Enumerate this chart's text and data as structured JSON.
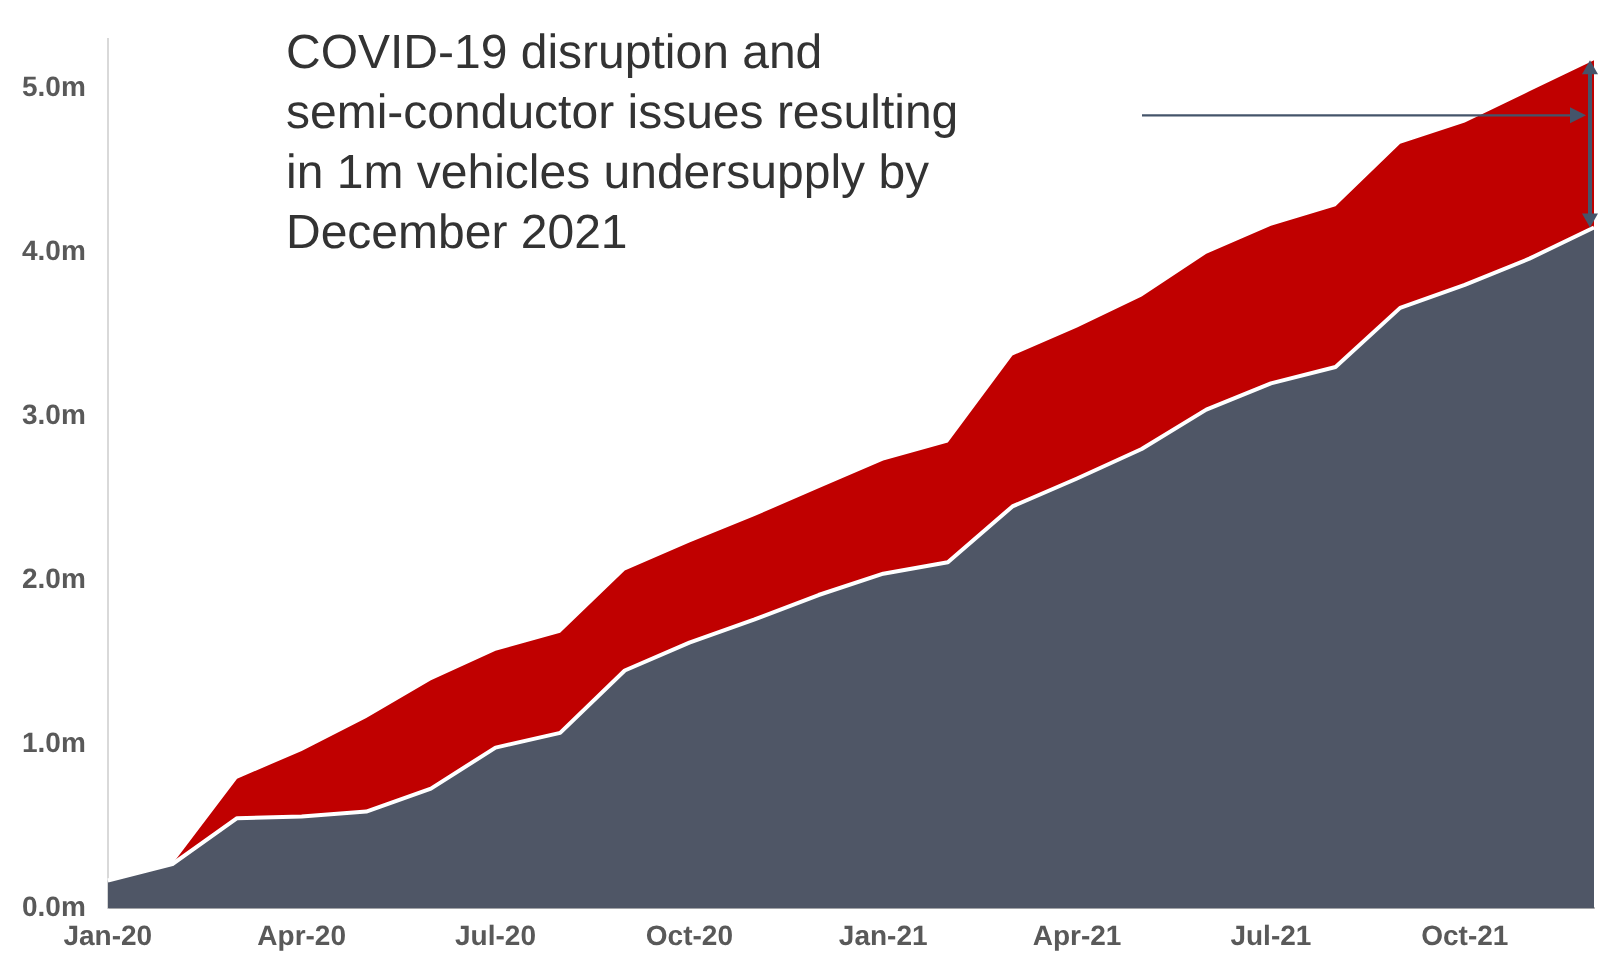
{
  "chart_data": {
    "type": "area",
    "stacked": true,
    "categories": [
      "Jan-20",
      null,
      null,
      "Apr-20",
      null,
      null,
      "Jul-20",
      null,
      null,
      "Oct-20",
      null,
      null,
      "Jan-21",
      null,
      null,
      "Apr-21",
      null,
      null,
      "Jul-21",
      null,
      null,
      "Oct-21",
      null,
      null
    ],
    "series": [
      {
        "color": "#4f5666",
        "values": [
          0.17,
          0.27,
          0.55,
          0.56,
          0.59,
          0.73,
          0.98,
          1.07,
          1.45,
          1.62,
          1.76,
          1.91,
          2.04,
          2.11,
          2.45,
          2.62,
          2.8,
          3.04,
          3.2,
          3.3,
          3.66,
          3.8,
          3.96,
          4.15
        ]
      },
      {
        "color": "#c00000",
        "values": [
          0,
          0,
          0.24,
          0.4,
          0.57,
          0.66,
          0.59,
          0.61,
          0.61,
          0.61,
          0.63,
          0.65,
          0.69,
          0.73,
          0.92,
          0.92,
          0.93,
          0.95,
          0.96,
          0.98,
          1.0,
          0.99,
          1.02,
          1.02
        ]
      }
    ],
    "ylim": [
      0,
      5.3
    ],
    "yticks": [
      {
        "value": 0,
        "label": "0.0m"
      },
      {
        "value": 1,
        "label": "1.0m"
      },
      {
        "value": 2,
        "label": "2.0m"
      },
      {
        "value": 3,
        "label": "3.0m"
      },
      {
        "value": 4,
        "label": "4.0m"
      },
      {
        "value": 5,
        "label": "5.0m"
      }
    ],
    "grid": false,
    "legend": false,
    "annotations": [
      "COVID-19 disruption and semi-conductor issues resulting in 1m vehicles undersupply by December 2021"
    ]
  }
}
